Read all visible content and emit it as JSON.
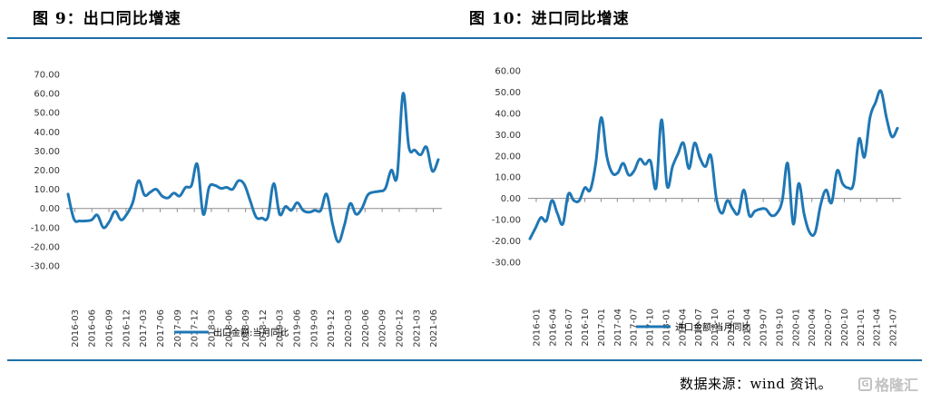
{
  "titles": {
    "left": "图 9：出口同比增速",
    "right": "图 10：进口同比增速"
  },
  "source": "数据来源：wind 资讯。",
  "watermark": {
    "text": "格隆汇",
    "icon": "logo-icon"
  },
  "colors": {
    "line": "#1f77b4",
    "axis": "#8c8c8c",
    "rule": "#1f6fa6"
  },
  "chart_data": [
    {
      "type": "line",
      "ylim": [
        -30,
        70
      ],
      "yticks": [
        "70.00",
        "60.00",
        "50.00",
        "40.00",
        "30.00",
        "20.00",
        "10.00",
        "0.00",
        "-10.00",
        "-20.00",
        "-30.00"
      ],
      "xticks": [
        "2016-03",
        "2016-06",
        "2016-09",
        "2016-12",
        "2017-03",
        "2017-06",
        "2017-09",
        "2017-12",
        "2018-03",
        "2018-06",
        "2018-09",
        "2018-12",
        "2019-03",
        "2019-06",
        "2019-09",
        "2019-12",
        "2020-03",
        "2020-06",
        "2020-09",
        "2020-12",
        "2021-03",
        "2021-06"
      ],
      "series": [
        {
          "name": "出口金额:当月同比",
          "values": [
            7.5,
            -5.5,
            -6.5,
            -6.5,
            -6,
            -3.5,
            -10,
            -7,
            -1.5,
            -6,
            -3,
            3,
            14.5,
            7,
            8.5,
            10,
            6.5,
            5.5,
            8,
            6.5,
            11,
            12,
            23,
            -3,
            11,
            12,
            10.5,
            11,
            10,
            14.5,
            12.5,
            4,
            -4.5,
            -5,
            -4.5,
            13,
            -3,
            1,
            -1,
            3,
            -1,
            -2,
            -1,
            -1,
            7.5,
            -8,
            -17.5,
            -9,
            2.5,
            -3,
            0,
            7,
            8.5,
            9,
            10.5,
            20,
            17,
            60,
            32,
            30.5,
            28,
            32,
            19.5,
            25.5
          ]
        }
      ]
    },
    {
      "type": "line",
      "ylim": [
        -30,
        60
      ],
      "yticks": [
        "60.00",
        "50.00",
        "40.00",
        "30.00",
        "20.00",
        "10.00",
        "0.00",
        "-10.00",
        "-20.00",
        "-30.00"
      ],
      "xticks": [
        "2016-01",
        "2016-04",
        "2016-07",
        "2016-10",
        "2017-01",
        "2017-04",
        "2017-07",
        "2017-10",
        "2018-01",
        "2018-04",
        "2018-07",
        "2018-10",
        "2019-01",
        "2019-04",
        "2019-07",
        "2019-10",
        "2020-01",
        "2020-04",
        "2020-07",
        "2020-10",
        "2021-01",
        "2021-04",
        "2021-07"
      ],
      "series": [
        {
          "name": "进口金额:当月同比",
          "values": [
            -19,
            -14,
            -9,
            -10.5,
            -1,
            -7,
            -12,
            2,
            -1,
            -1,
            5,
            4,
            16.5,
            38,
            20,
            12,
            12,
            16.5,
            11,
            13,
            18.5,
            16,
            17.5,
            5,
            37,
            6,
            15,
            21,
            26,
            14,
            26,
            19,
            15,
            20,
            0,
            -7,
            -1,
            -5,
            -7,
            4,
            -8,
            -6,
            -5,
            -5,
            -8,
            -7,
            -1,
            16.5,
            -12,
            7,
            -7.5,
            -16,
            -16,
            -3,
            4,
            -2,
            13,
            7,
            5,
            7,
            28,
            19.5,
            38,
            45,
            50.5,
            38,
            29,
            33
          ]
        }
      ]
    }
  ]
}
